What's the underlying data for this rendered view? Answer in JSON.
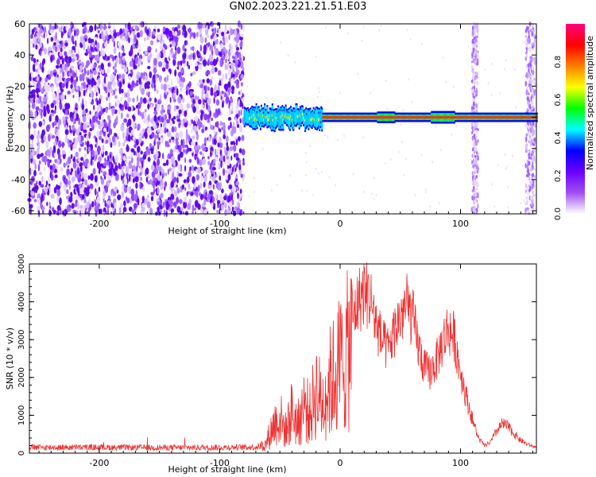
{
  "title": "GN02.2023.221.21.51.E03",
  "colors": {
    "frame": "#000000",
    "snr_line": "#ee3333",
    "background": "#ffffff"
  },
  "chart_data": [
    {
      "type": "heatmap",
      "title": "GN02.2023.221.21.51.E03",
      "xlabel": "Height of straight line (km)",
      "ylabel": "Frequency (Hz)",
      "xlim": [
        -258,
        163
      ],
      "ylim": [
        -62,
        60
      ],
      "x_ticks": [
        -200,
        -100,
        0,
        100
      ],
      "x_tick_labels": [
        "-200",
        "-100",
        "0",
        "100"
      ],
      "y_ticks": [
        -60,
        -40,
        -20,
        0,
        20,
        40,
        60
      ],
      "y_tick_labels": [
        "-60",
        "-40",
        "-20",
        "0",
        "20",
        "40",
        "60"
      ],
      "colorbar": {
        "label": "Normalized spectral amplitude",
        "range": [
          0,
          1
        ],
        "ticks": [
          0.0,
          0.2,
          0.4,
          0.6,
          0.8
        ],
        "tick_labels": [
          "0.0",
          "0.2",
          "0.4",
          "0.6",
          "0.8"
        ],
        "colormap": [
          "#ffffff",
          "#a050f0",
          "#6a00ff",
          "#0000ff",
          "#00ffff",
          "#00ff00",
          "#ffff00",
          "#ff7f00",
          "#ff0000",
          "#ff0080"
        ]
      },
      "features": {
        "noise_region_x": [
          -258,
          -80
        ],
        "carrier_start_x": -80,
        "carrier_freq_hz": 0,
        "vertical_noise_bands_x": [
          112,
          158
        ]
      }
    },
    {
      "type": "line",
      "xlabel": "Height of straight line (km)",
      "ylabel": "SNR (10 * v/v)",
      "xlim": [
        -258,
        163
      ],
      "ylim": [
        0,
        5000
      ],
      "x_ticks": [
        -200,
        -100,
        0,
        100
      ],
      "x_tick_labels": [
        "-200",
        "-100",
        "0",
        "100"
      ],
      "y_ticks": [
        0,
        1000,
        2000,
        3000,
        4000,
        5000
      ],
      "y_tick_labels": [
        "0",
        "1000",
        "2000",
        "3000",
        "4000",
        "5000"
      ],
      "envelope": {
        "x": [
          -258,
          -200,
          -150,
          -100,
          -70,
          -62,
          -55,
          -50,
          -45,
          -40,
          -35,
          -30,
          -25,
          -20,
          -15,
          -10,
          -5,
          0,
          5,
          10,
          15,
          20,
          25,
          30,
          35,
          40,
          45,
          50,
          55,
          60,
          65,
          70,
          75,
          80,
          85,
          90,
          95,
          100,
          105,
          110,
          115,
          120,
          125,
          130,
          135,
          140,
          145,
          150,
          155,
          163
        ],
        "y": [
          180,
          180,
          170,
          180,
          190,
          260,
          900,
          1100,
          700,
          1300,
          900,
          1500,
          1200,
          2000,
          1500,
          2100,
          2400,
          2800,
          3000,
          3600,
          4100,
          4400,
          4200,
          3500,
          3000,
          2800,
          3300,
          3700,
          4000,
          3700,
          2900,
          2300,
          2200,
          2500,
          3000,
          3400,
          3100,
          2200,
          1500,
          900,
          400,
          200,
          300,
          600,
          800,
          700,
          500,
          350,
          250,
          150
        ]
      }
    }
  ]
}
